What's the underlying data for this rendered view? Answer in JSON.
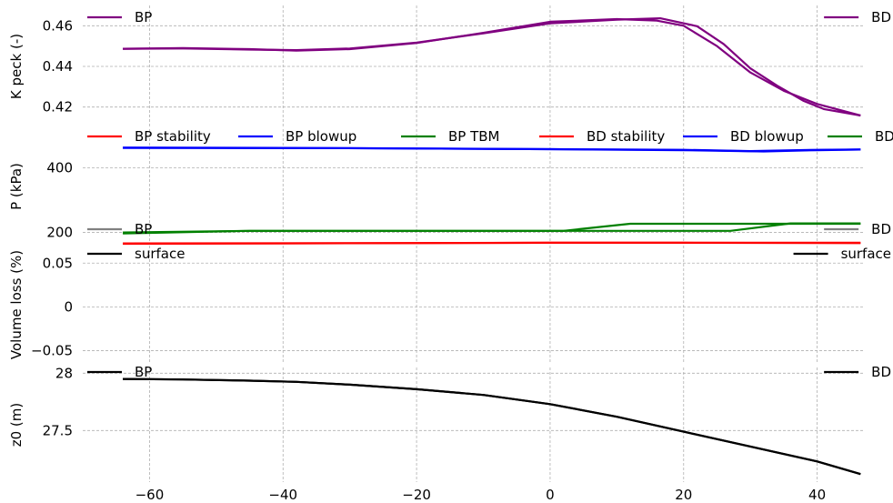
{
  "chart_data": [
    {
      "type": "line",
      "ylabel": "K peck (-)",
      "xlim": [
        -70,
        47
      ],
      "ylim": [
        0.41,
        0.47
      ],
      "yticks": [
        0.42,
        0.44,
        0.46
      ],
      "ytick_labels": [
        "0.42",
        "0.44",
        "0.46"
      ],
      "grid": true,
      "series": [
        {
          "name": "BP",
          "color": "#800080",
          "x": [
            -64,
            -55,
            -45,
            -38,
            -30,
            -20,
            -10,
            0,
            10,
            16,
            20,
            25,
            30,
            35,
            40,
            46.5
          ],
          "y": [
            0.4487,
            0.449,
            0.4485,
            0.4478,
            0.4485,
            0.4515,
            0.4565,
            0.462,
            0.4633,
            0.4625,
            0.46,
            0.45,
            0.437,
            0.428,
            0.4215,
            0.4158
          ]
        },
        {
          "name": "BD",
          "color": "#800080",
          "x": [
            -64,
            -55,
            -45,
            -38,
            -30,
            -20,
            -10,
            0,
            10,
            16.5,
            22,
            26,
            30,
            34,
            38,
            41,
            46.5
          ],
          "y": [
            0.4487,
            0.4488,
            0.4483,
            0.448,
            0.4488,
            0.4517,
            0.4563,
            0.4612,
            0.463,
            0.4637,
            0.4598,
            0.451,
            0.439,
            0.4305,
            0.423,
            0.419,
            0.4158
          ]
        }
      ],
      "legend": [
        {
          "label": "BP",
          "placement": "top-left"
        },
        {
          "label": "BD",
          "placement": "top-right"
        }
      ]
    },
    {
      "type": "line",
      "ylabel": "P (kPa)",
      "xlim": [
        -70,
        47
      ],
      "ylim": [
        165,
        520
      ],
      "yticks": [
        200,
        400
      ],
      "ytick_labels": [
        "200",
        "400"
      ],
      "grid": true,
      "series": [
        {
          "name": "BP stability",
          "color": "#ff0000",
          "x": [
            -64,
            -40,
            -20,
            0,
            20,
            46.5
          ],
          "y": [
            165,
            166,
            167,
            168,
            168,
            168
          ]
        },
        {
          "name": "BP blowup",
          "color": "#0000ff",
          "x": [
            -64,
            -40,
            -20,
            0,
            10,
            20,
            30,
            40,
            46.5
          ],
          "y": [
            463,
            462,
            460,
            458,
            457,
            456,
            452,
            456,
            457
          ]
        },
        {
          "name": "BP TBM",
          "color": "#008000",
          "x": [
            -64,
            -45,
            2,
            12,
            46.5
          ],
          "y": [
            200,
            205,
            205,
            227,
            227
          ]
        },
        {
          "name": "BD stability",
          "color": "#ff0000",
          "x": [
            -64,
            -30,
            0,
            20,
            46.5
          ],
          "y": [
            166,
            167,
            168,
            168,
            167
          ]
        },
        {
          "name": "BD blowup",
          "color": "#0000ff",
          "x": [
            -64,
            -30,
            0,
            20,
            32,
            40,
            46.5
          ],
          "y": [
            462,
            461,
            458,
            455,
            451,
            455,
            457
          ]
        },
        {
          "name": "BD TBM",
          "color": "#008000",
          "x": [
            -64,
            -45,
            27,
            36,
            46.5
          ],
          "y": [
            197,
            205,
            205,
            228,
            228
          ]
        }
      ],
      "legend_labels": [
        "BP stability",
        "BP blowup",
        "BP TBM",
        "BD stability",
        "BD blowup",
        "BD TBM"
      ],
      "legend_placement": "top, single row"
    },
    {
      "type": "line",
      "ylabel": "Volume loss (%)",
      "xlim": [
        -70,
        47
      ],
      "ylim": [
        -0.065,
        0.07
      ],
      "yticks": [
        -0.05,
        0,
        0.05
      ],
      "ytick_labels": [
        "−0.05",
        "0",
        "0.05"
      ],
      "grid": true,
      "series": [],
      "legend": [
        {
          "label": "BP",
          "color": "#808080",
          "placement": "top-left"
        },
        {
          "label": "surface",
          "color": "#000000",
          "placement": "top-left"
        },
        {
          "label": "BD",
          "color": "#808080",
          "placement": "top-right"
        },
        {
          "label": "surface",
          "color": "#000000",
          "placement": "top-right"
        }
      ]
    },
    {
      "type": "line",
      "ylabel": "z0 (m)",
      "xlim": [
        -70,
        47
      ],
      "ylim": [
        27.05,
        28.05
      ],
      "yticks": [
        27.5,
        28
      ],
      "ytick_labels": [
        "27.5",
        "28"
      ],
      "xticks": [
        -60,
        -40,
        -20,
        0,
        20,
        40
      ],
      "xtick_labels": [
        "−60",
        "−40",
        "−20",
        "0",
        "20",
        "40"
      ],
      "grid": true,
      "series": [
        {
          "name": "BP",
          "color": "#000000",
          "x": [
            -64,
            -55,
            -45,
            -38,
            -30,
            -20,
            -10,
            0,
            10,
            20,
            30,
            40,
            46.5
          ],
          "y": [
            27.95,
            27.945,
            27.935,
            27.925,
            27.9,
            27.86,
            27.81,
            27.73,
            27.62,
            27.49,
            27.36,
            27.23,
            27.12
          ]
        },
        {
          "name": "BD",
          "color": "#000000",
          "x": [
            -64,
            -55,
            -45,
            -38,
            -30,
            -20,
            -10,
            0,
            10,
            20,
            30,
            40,
            46.5
          ],
          "y": [
            27.95,
            27.945,
            27.935,
            27.925,
            27.9,
            27.86,
            27.81,
            27.73,
            27.62,
            27.49,
            27.36,
            27.23,
            27.12
          ]
        }
      ],
      "legend": [
        {
          "label": "BP",
          "placement": "top-left"
        },
        {
          "label": "BD",
          "placement": "top-right"
        }
      ]
    }
  ]
}
